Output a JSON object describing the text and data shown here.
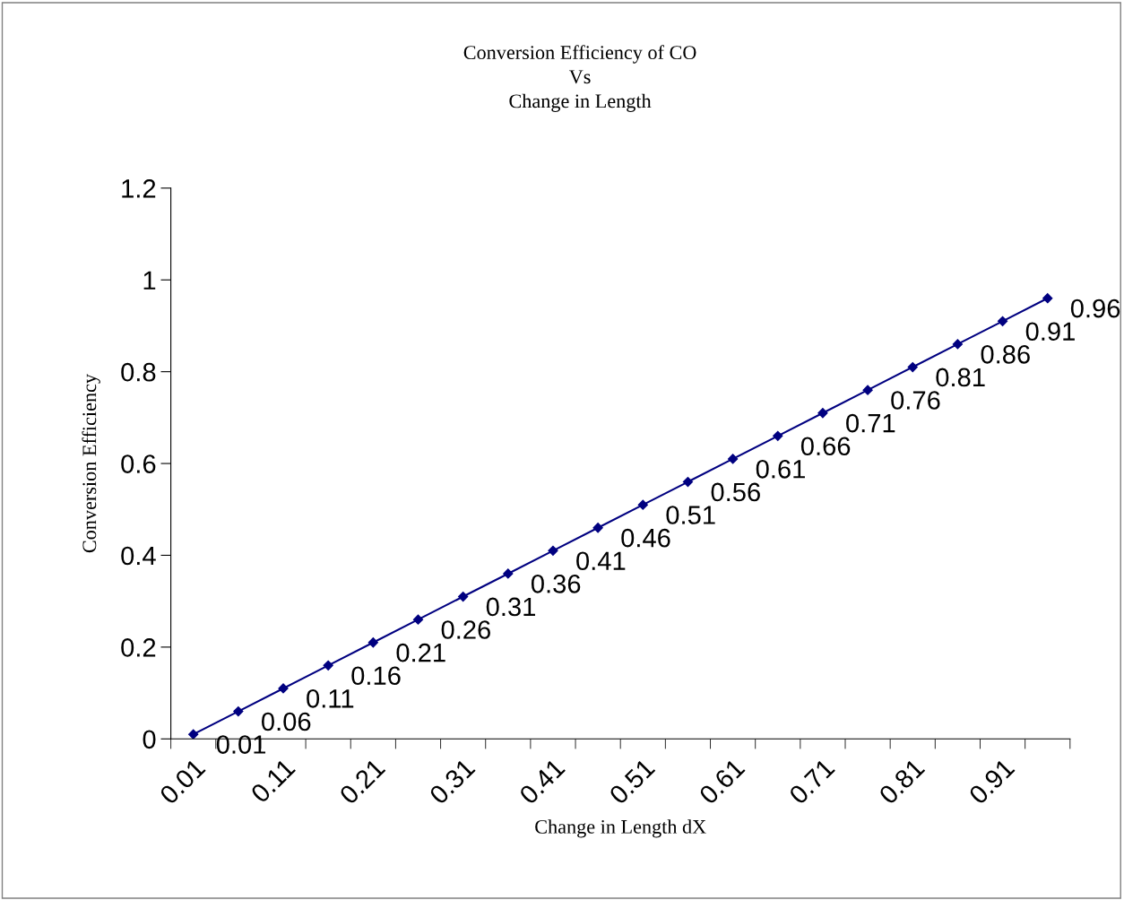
{
  "chart_data": {
    "type": "line",
    "title": "Conversion Efficiency of CO\nVs\nChange in Length",
    "xlabel": "Change in Length dX",
    "ylabel": "Conversion Efficiency",
    "categories": [
      "0.01",
      null,
      "0.11",
      null,
      "0.21",
      null,
      "0.31",
      null,
      "0.41",
      null,
      "0.51",
      null,
      "0.61",
      null,
      "0.71",
      null,
      "0.81",
      null,
      "0.91",
      null
    ],
    "series": [
      {
        "color": "#000080",
        "values": [
          0.01,
          0.06,
          0.11,
          0.16,
          0.21,
          0.26,
          0.31,
          0.36,
          0.41,
          0.46,
          0.51,
          0.56,
          0.61,
          0.66,
          0.71,
          0.76,
          0.81,
          0.86,
          0.91,
          0.96
        ]
      }
    ],
    "ylim": [
      0,
      1.2
    ],
    "yticks": [
      0,
      0.2,
      0.4,
      0.6,
      0.8,
      1,
      1.2
    ],
    "marker": "diamond",
    "line_style": "solid",
    "data_labels": true,
    "grid": false,
    "legend": false
  }
}
